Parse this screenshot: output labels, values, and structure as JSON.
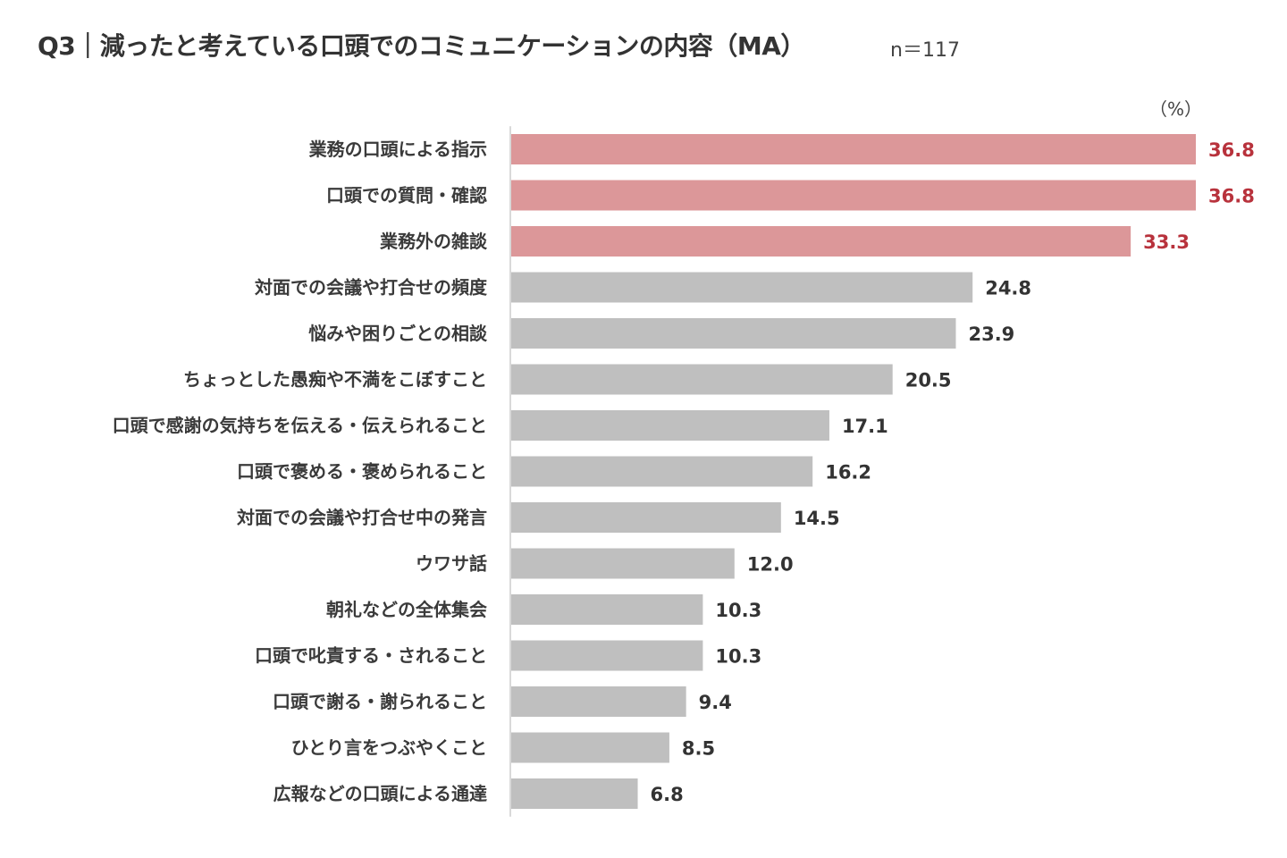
{
  "title": "Q3｜減ったと考えている口頭でのコミュニケーションの内容（MA）",
  "sample_size": "n＝117",
  "unit": "（%）",
  "colors": {
    "highlight_bar": "#dc9799",
    "normal_bar": "#bfbfbf",
    "highlight_text": "#b8323c",
    "normal_text": "#333333",
    "axis": "#d9d9d9"
  },
  "chart_data": {
    "type": "bar",
    "orientation": "horizontal",
    "title": "Q3｜減ったと考えている口頭でのコミュニケーションの内容（MA）",
    "xlabel": "",
    "ylabel": "",
    "unit": "（%）",
    "xlim": [
      0,
      36.8
    ],
    "grid": false,
    "categories": [
      "業務の口頭による指示",
      "口頭での質問・確認",
      "業務外の雑談",
      "対面での会議や打合せの頻度",
      "悩みや困りごとの相談",
      "ちょっとした愚痴や不満をこぼすこと",
      "口頭で感謝の気持ちを伝える・伝えられること",
      "口頭で褒める・褒められること",
      "対面での会議や打合せ中の発言",
      "ウワサ話",
      "朝礼などの全体集会",
      "口頭で叱責する・されること",
      "口頭で謝る・謝られること",
      "ひとり言をつぶやくこと",
      "広報などの口頭による通達"
    ],
    "values": [
      36.8,
      36.8,
      33.3,
      24.8,
      23.9,
      20.5,
      17.1,
      16.2,
      14.5,
      12.0,
      10.3,
      10.3,
      9.4,
      8.5,
      6.8
    ],
    "value_labels": [
      "36.8",
      "36.8",
      "33.3",
      "24.8",
      "23.9",
      "20.5",
      "17.1",
      "16.2",
      "14.5",
      "12.0",
      "10.3",
      "10.3",
      "9.4",
      "8.5",
      "6.8"
    ],
    "highlighted": [
      true,
      true,
      true,
      false,
      false,
      false,
      false,
      false,
      false,
      false,
      false,
      false,
      false,
      false,
      false
    ]
  }
}
